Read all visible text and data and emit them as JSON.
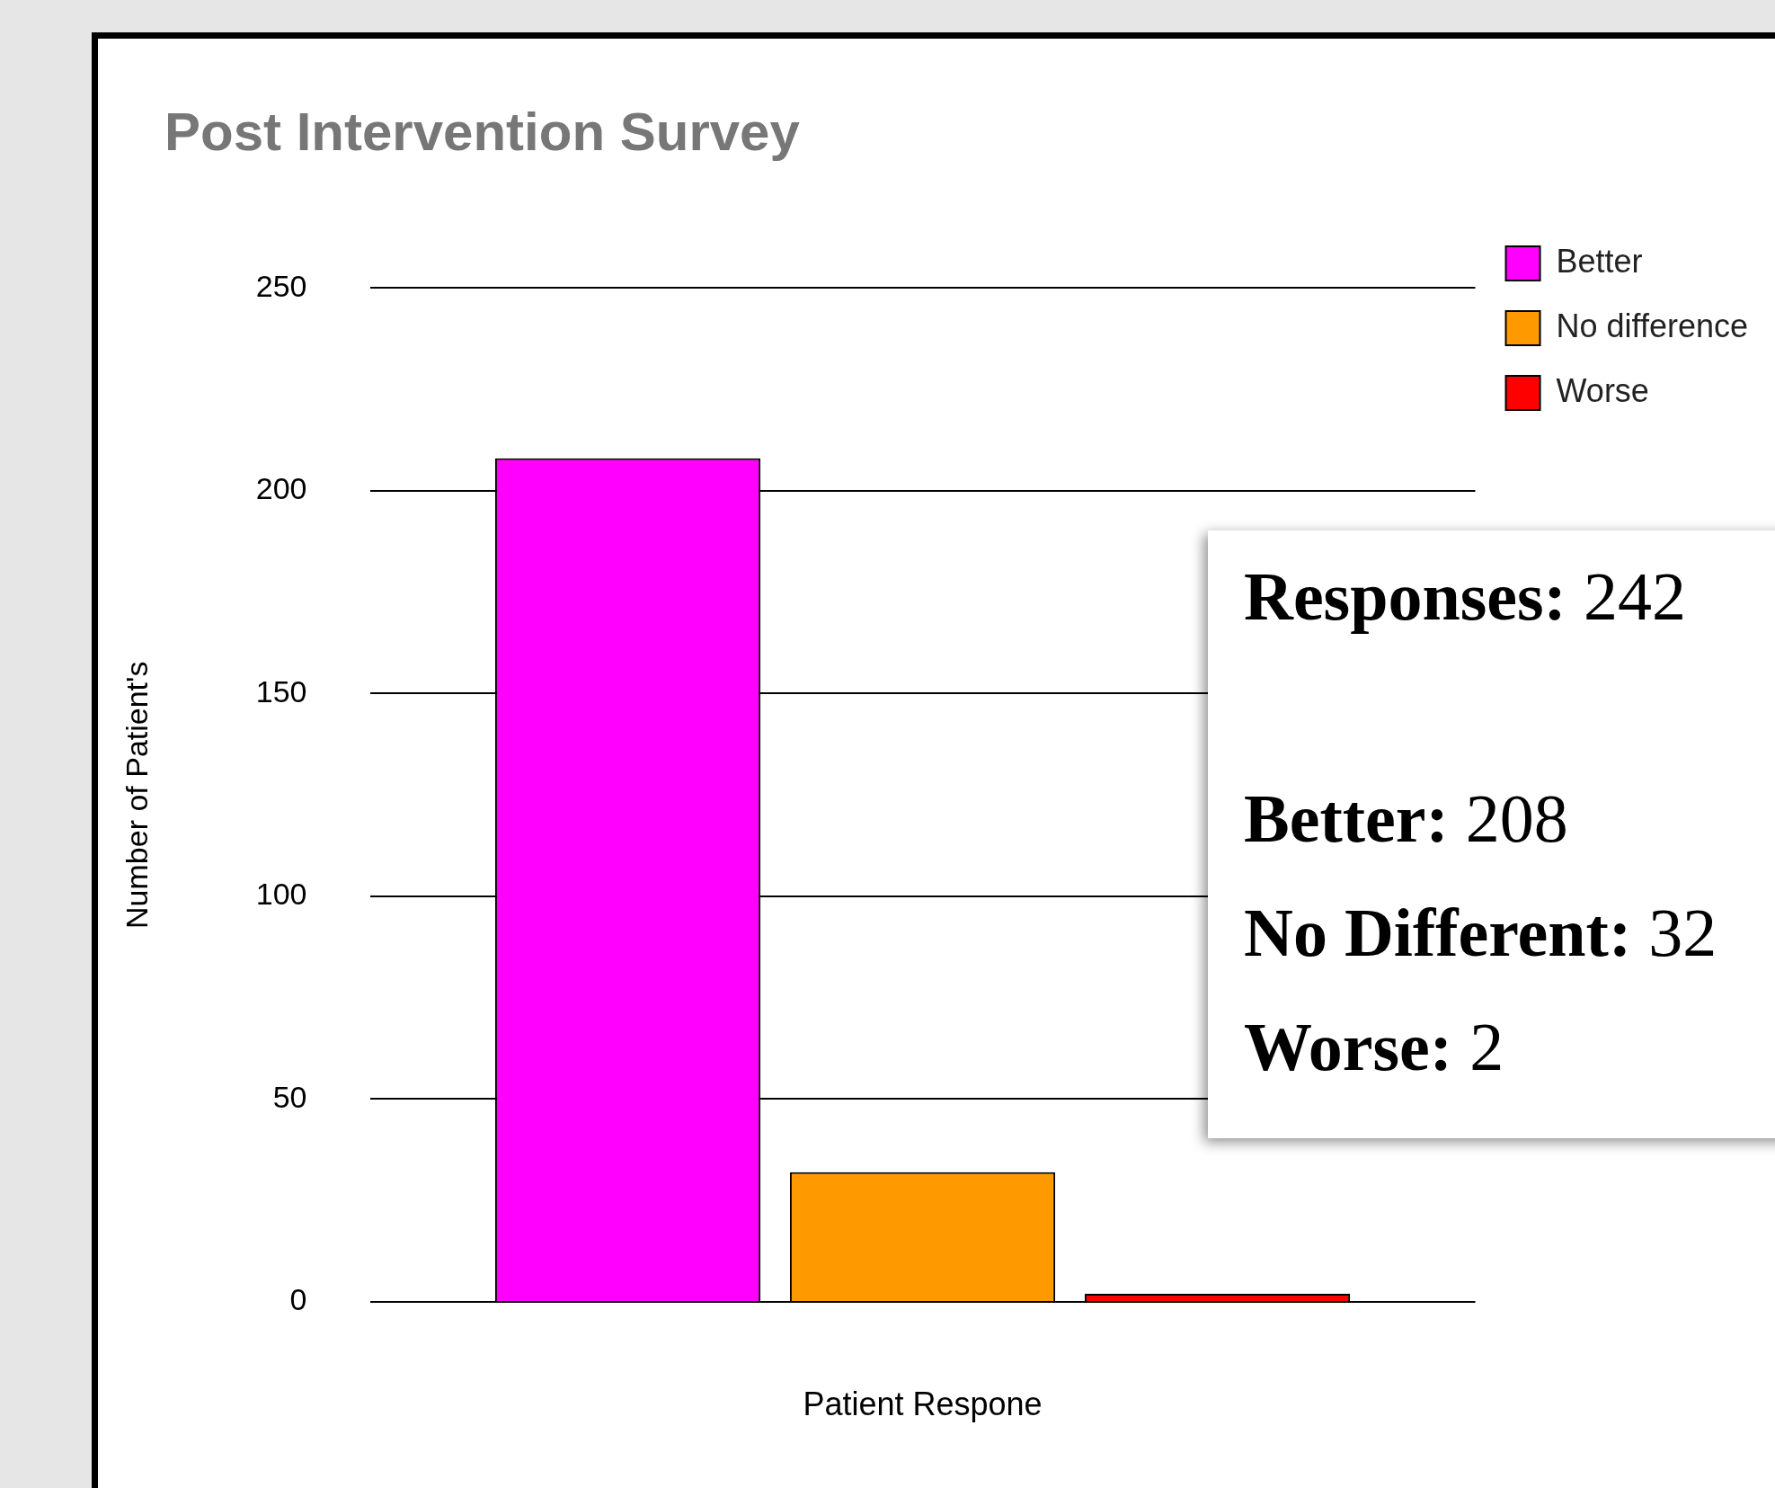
{
  "chart_data": {
    "type": "bar",
    "title": "Post Intervention Survey",
    "xlabel": "Patient Respone",
    "ylabel": "Number of Patient's",
    "categories": [
      null
    ],
    "series": [
      {
        "name": "Better",
        "color": "#ff00ff",
        "values": [
          208
        ]
      },
      {
        "name": "No difference",
        "color": "#ff9900",
        "values": [
          32
        ]
      },
      {
        "name": "Worse",
        "color": "#ff0000",
        "values": [
          2
        ]
      }
    ],
    "ylim": [
      0,
      250
    ],
    "yticks": [
      0,
      50,
      100,
      150,
      200,
      250
    ],
    "grid": "y",
    "legend": "top right",
    "annotations": [
      "Responses: 242",
      "Better: 208",
      "No Different: 32",
      "Worse: 2"
    ]
  }
}
